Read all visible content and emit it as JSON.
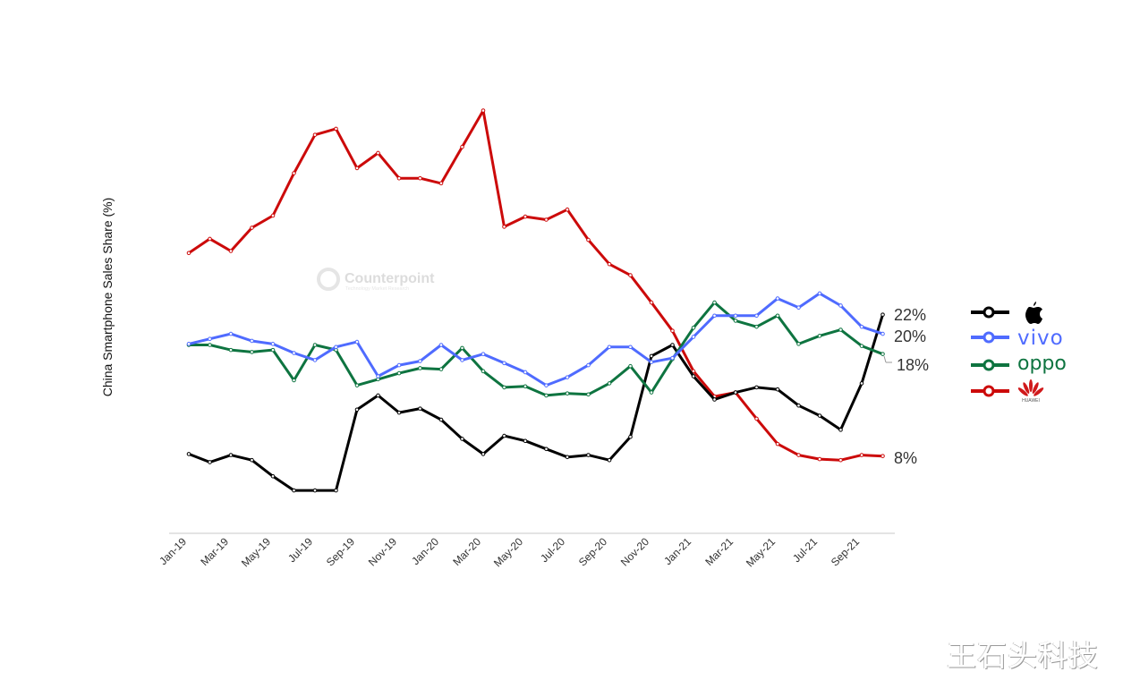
{
  "chart_data": {
    "type": "line",
    "title": "",
    "xlabel": "",
    "ylabel": "China Smartphone Sales Share (%)",
    "ylim": [
      0,
      44
    ],
    "grid": false,
    "legend_position": "right",
    "x": [
      "Jan-19",
      "Feb-19",
      "Mar-19",
      "Apr-19",
      "May-19",
      "Jun-19",
      "Jul-19",
      "Aug-19",
      "Sep-19",
      "Oct-19",
      "Nov-19",
      "Dec-19",
      "Jan-20",
      "Feb-20",
      "Mar-20",
      "Apr-20",
      "May-20",
      "Jun-20",
      "Jul-20",
      "Aug-20",
      "Sep-20",
      "Oct-20",
      "Nov-20",
      "Dec-20",
      "Jan-21",
      "Feb-21",
      "Mar-21",
      "Apr-21",
      "May-21",
      "Jun-21",
      "Jul-21",
      "Aug-21",
      "Sep-21",
      "Oct-21"
    ],
    "tick_labels": [
      "Jan-19",
      "Mar-19",
      "May-19",
      "Jul-19",
      "Sep-19",
      "Nov-19",
      "Jan-20",
      "Mar-20",
      "May-20",
      "Jul-20",
      "Sep-20",
      "Nov-20",
      "Jan-21",
      "Mar-21",
      "May-21",
      "Jul-21",
      "Sep-21"
    ],
    "series": [
      {
        "name": "Apple",
        "color": "#000000",
        "end_label": "22%",
        "values": [
          8.2,
          7.4,
          8.1,
          7.6,
          6.0,
          4.6,
          4.6,
          4.6,
          12.6,
          14.0,
          12.3,
          12.7,
          11.6,
          9.7,
          8.2,
          10.0,
          9.5,
          8.7,
          7.9,
          8.1,
          7.6,
          9.9,
          17.9,
          19.0,
          15.9,
          13.6,
          14.3,
          14.8,
          14.6,
          13.0,
          12.0,
          10.6,
          15.2,
          22.0
        ]
      },
      {
        "name": "vivo",
        "color": "#4f6bff",
        "end_label": "20%",
        "values": [
          19.1,
          19.6,
          20.1,
          19.4,
          19.1,
          18.2,
          17.5,
          18.8,
          19.3,
          15.9,
          17.0,
          17.4,
          19.0,
          17.5,
          18.1,
          17.2,
          16.3,
          15.0,
          15.8,
          17.0,
          18.8,
          18.8,
          17.3,
          17.7,
          19.8,
          21.9,
          21.9,
          21.9,
          23.6,
          22.7,
          24.1,
          22.9,
          20.8,
          20.1
        ]
      },
      {
        "name": "oppo",
        "color": "#0e7440",
        "end_label": "18%",
        "values": [
          19.0,
          19.0,
          18.5,
          18.3,
          18.5,
          15.5,
          19.0,
          18.5,
          15.0,
          15.6,
          16.2,
          16.7,
          16.6,
          18.7,
          16.4,
          14.8,
          14.9,
          14.0,
          14.2,
          14.1,
          15.2,
          16.9,
          14.3,
          17.6,
          20.7,
          23.2,
          21.4,
          20.8,
          21.9,
          19.1,
          19.9,
          20.5,
          18.9,
          18.1
        ]
      },
      {
        "name": "HUAWEI",
        "color": "#cc0a0a",
        "end_label": "8%",
        "values": [
          28.1,
          29.5,
          28.3,
          30.6,
          31.8,
          36.0,
          39.8,
          40.4,
          36.5,
          38.0,
          35.5,
          35.5,
          35.0,
          38.6,
          42.2,
          30.7,
          31.7,
          31.4,
          32.4,
          29.4,
          27.0,
          25.9,
          23.2,
          20.4,
          16.4,
          13.9,
          14.3,
          11.7,
          9.2,
          8.1,
          7.7,
          7.6,
          8.1,
          8.0
        ]
      }
    ]
  },
  "watermarks": {
    "brand": "Counterpoint",
    "brand_sub": "Technology Market Research",
    "author": "王石头科技"
  }
}
